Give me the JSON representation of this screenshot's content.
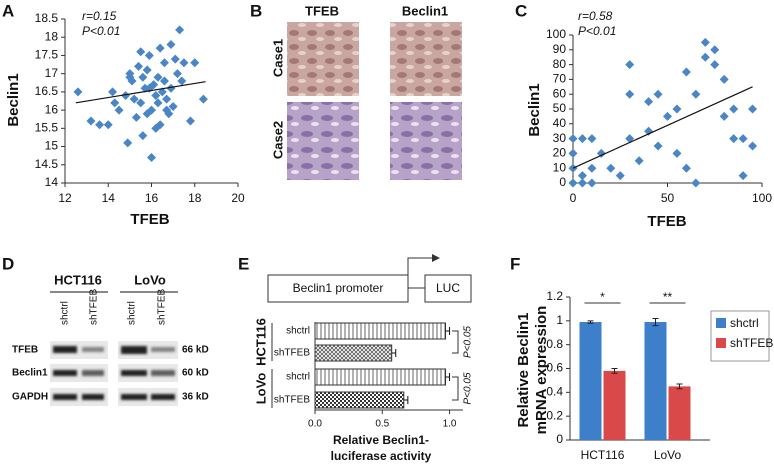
{
  "chart_data": [
    {
      "type": "scatter",
      "panel": "A",
      "xlabel": "TFEB",
      "ylabel": "Beclin1",
      "annotations": [
        "r=0.15",
        "P<0.01"
      ],
      "color": "#4a86c5",
      "xlim": [
        12,
        20
      ],
      "xticks": [
        12,
        14,
        16,
        18,
        20
      ],
      "ylim": [
        14,
        18.5
      ],
      "yticks": [
        14,
        14.5,
        15,
        15.5,
        16,
        16.5,
        17,
        17.5,
        18,
        18.5
      ],
      "x": [
        14.2,
        15.1,
        15.8,
        16.3,
        16.9,
        15.5,
        16.0,
        16.6,
        17.2,
        14.8,
        15.3,
        16.1,
        16.7,
        15.9,
        16.4,
        17.0,
        15.0,
        15.7,
        16.2,
        16.8,
        14.5,
        17.5,
        15.4,
        16.5,
        15.6,
        16.0,
        16.9,
        17.3,
        14.0,
        13.2,
        12.6,
        13.6,
        18.0,
        18.4,
        17.8,
        15.2,
        16.3,
        15.8,
        14.9,
        16.6,
        17.1,
        15.5,
        16.2,
        16.7,
        15.0,
        17.4,
        14.3,
        16.4,
        15.9,
        15.6
      ],
      "values": [
        16.5,
        16.8,
        17.1,
        16.9,
        16.6,
        16.2,
        16.0,
        17.3,
        17.0,
        16.4,
        15.8,
        16.7,
        16.3,
        17.5,
        17.7,
        16.1,
        16.9,
        16.6,
        15.5,
        15.9,
        16.0,
        17.3,
        17.2,
        16.5,
        15.3,
        14.7,
        17.8,
        18.2,
        15.6,
        15.7,
        16.5,
        15.6,
        17.3,
        16.3,
        15.7,
        16.3,
        16.2,
        15.9,
        15.1,
        16.8,
        17.4,
        17.6,
        16.4,
        16.0,
        17.0,
        16.8,
        16.2,
        15.6,
        16.6,
        16.9
      ],
      "fit": {
        "x": [
          12.5,
          18.5
        ],
        "values": [
          16.2,
          16.78
        ]
      }
    },
    {
      "type": "scatter",
      "panel": "C",
      "xlabel": "TFEB",
      "ylabel": "Beclin1",
      "annotations": [
        "r=0.58",
        "P<0.01"
      ],
      "color": "#4a86c5",
      "xlim": [
        0,
        100
      ],
      "xticks": [
        0,
        50,
        100
      ],
      "ylim": [
        0,
        100
      ],
      "yticks": [
        0,
        10,
        20,
        30,
        40,
        50,
        60,
        70,
        80,
        90,
        100
      ],
      "x": [
        0,
        0,
        0,
        0,
        5,
        5,
        10,
        10,
        10,
        15,
        20,
        25,
        30,
        30,
        30,
        35,
        40,
        40,
        45,
        45,
        50,
        55,
        55,
        60,
        60,
        65,
        65,
        70,
        70,
        75,
        75,
        80,
        80,
        85,
        85,
        90,
        90,
        95,
        95,
        5
      ],
      "values": [
        0,
        10,
        20,
        30,
        0,
        30,
        0,
        10,
        30,
        20,
        10,
        5,
        80,
        60,
        30,
        15,
        35,
        55,
        25,
        60,
        45,
        50,
        20,
        75,
        10,
        60,
        0,
        95,
        85,
        90,
        80,
        70,
        45,
        30,
        50,
        30,
        5,
        25,
        50,
        5
      ],
      "fit": {
        "x": [
          0,
          95
        ],
        "values": [
          10,
          65
        ]
      }
    },
    {
      "type": "bar",
      "orientation": "horizontal",
      "panel": "E",
      "construct": [
        "Beclin1 promoter",
        "LUC"
      ],
      "xlabel": [
        "Relative Beclin1-",
        "luciferase activity"
      ],
      "groups": [
        "HCT116",
        "LoVo"
      ],
      "annotations": [
        "P<0.05",
        "P<0.05"
      ],
      "categories": [
        "shctrl",
        "shTFEB",
        "shctrl",
        "shTFEB"
      ],
      "values": [
        0.97,
        0.57,
        0.97,
        0.66
      ],
      "errors": [
        0.03,
        0.03,
        0.03,
        0.03
      ],
      "xlim": [
        0,
        1.1
      ],
      "xticks": [
        {
          "value": 0,
          "label": "0.0"
        },
        0.5,
        {
          "value": 1,
          "label": "1.0"
        }
      ]
    },
    {
      "type": "bar",
      "orientation": "vertical",
      "panel": "F",
      "ylabel": [
        "Relative Beclin1",
        "mRNA expression"
      ],
      "categories": [
        "HCT116",
        "LoVo"
      ],
      "significance": [
        "*",
        "**"
      ],
      "series": [
        {
          "name": "shctrl",
          "color": "#3d7fc9",
          "values": [
            0.99,
            0.99
          ],
          "errors": [
            0.01,
            0.03
          ]
        },
        {
          "name": "shTFEB",
          "color": "#d9494a",
          "values": [
            0.58,
            0.45
          ],
          "errors": [
            0.02,
            0.02
          ]
        }
      ],
      "ylim": [
        0,
        1.2
      ],
      "yticks": [
        0,
        0.2,
        0.4,
        0.6,
        0.8,
        1,
        1.2
      ]
    }
  ],
  "ihc": {
    "panel": "B",
    "columns": [
      "TFEB",
      "Beclin1"
    ],
    "rows": [
      "Case1",
      "Case2"
    ]
  },
  "blot": {
    "panel": "D",
    "cell_lines": [
      "HCT116",
      "LoVo"
    ],
    "lanes": [
      "shctrl",
      "shTFEB",
      "shctrl",
      "shTFEB"
    ],
    "rows": [
      "TFEB",
      "Beclin1",
      "GAPDH"
    ],
    "sizes": [
      "66 kD",
      "60 kD",
      "36 kD"
    ]
  }
}
